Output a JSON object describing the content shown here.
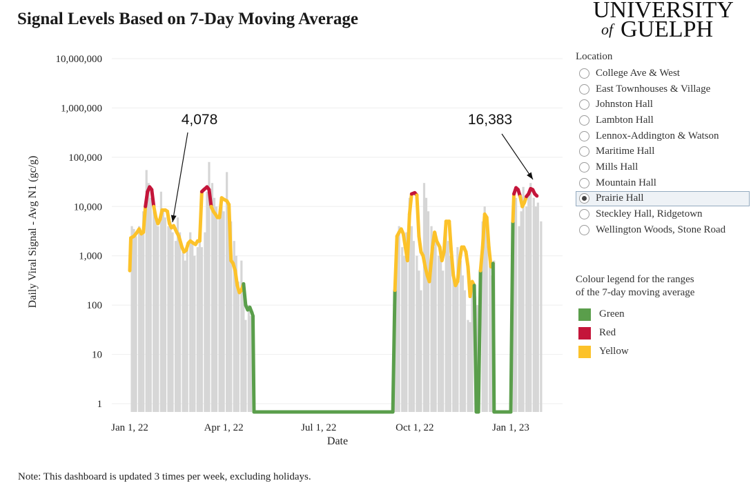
{
  "title": "Signal Levels Based on 7-Day Moving Average",
  "logo": {
    "line1": "UNIVERSITY",
    "of": "of",
    "line2": "GUELPH"
  },
  "location_panel": {
    "heading": "Location",
    "items": [
      {
        "label": "College Ave & West",
        "selected": false
      },
      {
        "label": "East Townhouses & Village",
        "selected": false
      },
      {
        "label": "Johnston Hall",
        "selected": false
      },
      {
        "label": "Lambton Hall",
        "selected": false
      },
      {
        "label": "Lennox-Addington & Watson",
        "selected": false
      },
      {
        "label": "Maritime Hall",
        "selected": false
      },
      {
        "label": "Mills Hall",
        "selected": false
      },
      {
        "label": "Mountain Hall",
        "selected": false
      },
      {
        "label": "Prairie Hall",
        "selected": true
      },
      {
        "label": "Steckley Hall, Ridgetown",
        "selected": false
      },
      {
        "label": "Wellington Woods, Stone Road",
        "selected": false
      }
    ]
  },
  "legend": {
    "title_line1": "Colour legend for the ranges",
    "title_line2": "of the 7-day moving average",
    "items": [
      {
        "label": "Green",
        "color": "#5a9e4b"
      },
      {
        "label": "Red",
        "color": "#c4153a"
      },
      {
        "label": "Yellow",
        "color": "#fcc22a"
      }
    ]
  },
  "note": "Note: This dashboard is updated 3 times per week, excluding holidays.",
  "chart_data": {
    "type": "bar",
    "title": "Signal Levels Based on 7-Day Moving Average",
    "xlabel": "Date",
    "ylabel": "Daily Viral Signal - Avg N1 (gc/g)",
    "y_scale": "log",
    "ylim": [
      1,
      10000000
    ],
    "xlim": [
      "2021-12-31",
      "2023-02-20"
    ],
    "y_ticks": [
      {
        "value": 10000000,
        "label": "10,000,000"
      },
      {
        "value": 1000000,
        "label": "1,000,000"
      },
      {
        "value": 100000,
        "label": "100,000"
      },
      {
        "value": 10000,
        "label": "10,000"
      },
      {
        "value": 1000,
        "label": "1,000"
      },
      {
        "value": 100,
        "label": "100"
      },
      {
        "value": 10,
        "label": "10"
      },
      {
        "value": 1,
        "label": "1"
      }
    ],
    "x_ticks": [
      {
        "date": "2022-01-01",
        "label": "Jan 1, 22"
      },
      {
        "date": "2022-04-01",
        "label": "Apr 1, 22"
      },
      {
        "date": "2022-07-01",
        "label": "Jul 1, 22"
      },
      {
        "date": "2022-10-01",
        "label": "Oct 1, 22"
      },
      {
        "date": "2023-01-01",
        "label": "Jan 1, 23"
      }
    ],
    "grid": true,
    "legend_position": "right",
    "bar_color": "#d6d6d6",
    "bars": {
      "name": "Daily Viral Signal",
      "points": [
        [
          "2022-01-03",
          4000
        ],
        [
          "2022-01-05",
          3500
        ],
        [
          "2022-01-07",
          2500
        ],
        [
          "2022-01-10",
          4000
        ],
        [
          "2022-01-12",
          3000
        ],
        [
          "2022-01-14",
          8000
        ],
        [
          "2022-01-17",
          55000
        ],
        [
          "2022-01-19",
          30000
        ],
        [
          "2022-01-21",
          15000
        ],
        [
          "2022-01-24",
          8000
        ],
        [
          "2022-01-26",
          6000
        ],
        [
          "2022-01-28",
          4000
        ],
        [
          "2022-01-31",
          20000
        ],
        [
          "2022-02-02",
          9000
        ],
        [
          "2022-02-04",
          6000
        ],
        [
          "2022-02-07",
          4000
        ],
        [
          "2022-02-09",
          5000
        ],
        [
          "2022-02-11",
          3000
        ],
        [
          "2022-02-14",
          2000
        ],
        [
          "2022-02-16",
          6000
        ],
        [
          "2022-02-18",
          3000
        ],
        [
          "2022-02-21",
          1200
        ],
        [
          "2022-02-23",
          800
        ],
        [
          "2022-02-25",
          1500
        ],
        [
          "2022-02-28",
          3000
        ],
        [
          "2022-03-02",
          1800
        ],
        [
          "2022-03-04",
          1000
        ],
        [
          "2022-03-07",
          1500
        ],
        [
          "2022-03-09",
          2500
        ],
        [
          "2022-03-11",
          1500
        ],
        [
          "2022-03-14",
          3000
        ],
        [
          "2022-03-16",
          20000
        ],
        [
          "2022-03-18",
          80000
        ],
        [
          "2022-03-21",
          30000
        ],
        [
          "2022-03-23",
          15000
        ],
        [
          "2022-03-25",
          10000
        ],
        [
          "2022-03-28",
          8000
        ],
        [
          "2022-03-30",
          15000
        ],
        [
          "2022-04-01",
          8000
        ],
        [
          "2022-04-04",
          50000
        ],
        [
          "2022-04-06",
          8000
        ],
        [
          "2022-04-08",
          5000
        ],
        [
          "2022-04-11",
          2000
        ],
        [
          "2022-04-13",
          1000
        ],
        [
          "2022-04-15",
          300
        ],
        [
          "2022-04-18",
          800
        ],
        [
          "2022-04-20",
          200
        ],
        [
          "2022-04-22",
          50
        ],
        [
          "2022-04-25",
          100
        ],
        [
          "2022-04-27",
          60
        ],
        [
          "2022-09-12",
          200
        ],
        [
          "2022-09-14",
          2000
        ],
        [
          "2022-09-16",
          4000
        ],
        [
          "2022-09-19",
          1500
        ],
        [
          "2022-09-21",
          1000
        ],
        [
          "2022-09-23",
          3000
        ],
        [
          "2022-09-26",
          15000
        ],
        [
          "2022-09-28",
          4000
        ],
        [
          "2022-09-30",
          2000
        ],
        [
          "2022-10-03",
          1000
        ],
        [
          "2022-10-05",
          500
        ],
        [
          "2022-10-07",
          200
        ],
        [
          "2022-10-10",
          30000
        ],
        [
          "2022-10-12",
          15000
        ],
        [
          "2022-10-14",
          8000
        ],
        [
          "2022-10-17",
          4000
        ],
        [
          "2022-10-19",
          1500
        ],
        [
          "2022-10-21",
          3000
        ],
        [
          "2022-10-24",
          1000
        ],
        [
          "2022-10-26",
          800
        ],
        [
          "2022-10-28",
          500
        ],
        [
          "2022-10-31",
          5000
        ],
        [
          "2022-11-02",
          2000
        ],
        [
          "2022-11-04",
          1000
        ],
        [
          "2022-11-07",
          400
        ],
        [
          "2022-11-09",
          300
        ],
        [
          "2022-11-11",
          1500
        ],
        [
          "2022-11-14",
          800
        ],
        [
          "2022-11-16",
          400
        ],
        [
          "2022-11-18",
          200
        ],
        [
          "2022-11-21",
          50
        ],
        [
          "2022-11-23",
          45
        ],
        [
          "2022-11-25",
          200
        ],
        [
          "2022-11-28",
          150
        ],
        [
          "2022-11-30",
          100
        ],
        [
          "2022-12-05",
          5000
        ],
        [
          "2022-12-07",
          10000
        ],
        [
          "2022-12-09",
          6000
        ],
        [
          "2022-12-12",
          1000
        ],
        [
          "2022-12-14",
          400
        ],
        [
          "2022-12-16",
          800
        ],
        [
          "2023-01-04",
          20000
        ],
        [
          "2023-01-06",
          15000
        ],
        [
          "2023-01-09",
          4000
        ],
        [
          "2023-01-11",
          8000
        ],
        [
          "2023-01-13",
          25000
        ],
        [
          "2023-01-16",
          10000
        ],
        [
          "2023-01-18",
          20000
        ],
        [
          "2023-01-20",
          30000
        ],
        [
          "2023-01-23",
          15000
        ],
        [
          "2023-01-25",
          10000
        ],
        [
          "2023-01-27",
          12000
        ],
        [
          "2023-01-30",
          5000
        ]
      ]
    },
    "series": [
      {
        "name": "7-day moving average",
        "points": [
          [
            "2022-01-01",
            500
          ],
          [
            "2022-01-02",
            2300
          ],
          [
            "2022-01-05",
            2500
          ],
          [
            "2022-01-08",
            3000
          ],
          [
            "2022-01-10",
            3500
          ],
          [
            "2022-01-12",
            2800
          ],
          [
            "2022-01-14",
            3000
          ],
          [
            "2022-01-16",
            10000
          ],
          [
            "2022-01-18",
            20000
          ],
          [
            "2022-01-20",
            25000
          ],
          [
            "2022-01-22",
            22000
          ],
          [
            "2022-01-24",
            10000
          ],
          [
            "2022-01-26",
            6000
          ],
          [
            "2022-01-28",
            4500
          ],
          [
            "2022-01-30",
            5500
          ],
          [
            "2022-02-01",
            8500
          ],
          [
            "2022-02-04",
            8500
          ],
          [
            "2022-02-06",
            8000
          ],
          [
            "2022-02-08",
            4500
          ],
          [
            "2022-02-10",
            3700
          ],
          [
            "2022-02-12",
            4078
          ],
          [
            "2022-02-15",
            3000
          ],
          [
            "2022-02-17",
            2500
          ],
          [
            "2022-02-20",
            1500
          ],
          [
            "2022-02-22",
            1200
          ],
          [
            "2022-02-24",
            1300
          ],
          [
            "2022-02-26",
            1800
          ],
          [
            "2022-02-28",
            2000
          ],
          [
            "2022-03-03",
            1800
          ],
          [
            "2022-03-05",
            1700
          ],
          [
            "2022-03-07",
            2000
          ],
          [
            "2022-03-09",
            2000
          ],
          [
            "2022-03-11",
            20000
          ],
          [
            "2022-03-13",
            22000
          ],
          [
            "2022-03-16",
            25000
          ],
          [
            "2022-03-18",
            22000
          ],
          [
            "2022-03-20",
            10000
          ],
          [
            "2022-03-22",
            8000
          ],
          [
            "2022-03-24",
            7000
          ],
          [
            "2022-03-26",
            6000
          ],
          [
            "2022-03-28",
            6000
          ],
          [
            "2022-03-30",
            15000
          ],
          [
            "2022-04-01",
            14000
          ],
          [
            "2022-04-04",
            13000
          ],
          [
            "2022-04-06",
            11000
          ],
          [
            "2022-04-08",
            800
          ],
          [
            "2022-04-10",
            700
          ],
          [
            "2022-04-12",
            500
          ],
          [
            "2022-04-14",
            250
          ],
          [
            "2022-04-16",
            180
          ],
          [
            "2022-04-18",
            200
          ],
          [
            "2022-04-20",
            270
          ],
          [
            "2022-04-22",
            100
          ],
          [
            "2022-04-24",
            80
          ],
          [
            "2022-04-26",
            90
          ],
          [
            "2022-04-28",
            70
          ],
          [
            "2022-04-29",
            60
          ],
          [
            "2022-04-30",
            0.7
          ],
          [
            "2022-09-10",
            0.7
          ],
          [
            "2022-09-12",
            200
          ],
          [
            "2022-09-14",
            2500
          ],
          [
            "2022-09-16",
            3000
          ],
          [
            "2022-09-18",
            3500
          ],
          [
            "2022-09-20",
            2800
          ],
          [
            "2022-09-22",
            1500
          ],
          [
            "2022-09-24",
            800
          ],
          [
            "2022-09-26",
            7000
          ],
          [
            "2022-09-28",
            18000
          ],
          [
            "2022-10-01",
            19000
          ],
          [
            "2022-10-03",
            17000
          ],
          [
            "2022-10-05",
            2500
          ],
          [
            "2022-10-07",
            1200
          ],
          [
            "2022-10-09",
            1000
          ],
          [
            "2022-10-11",
            600
          ],
          [
            "2022-10-13",
            400
          ],
          [
            "2022-10-15",
            300
          ],
          [
            "2022-10-18",
            1500
          ],
          [
            "2022-10-20",
            3000
          ],
          [
            "2022-10-22",
            2000
          ],
          [
            "2022-10-25",
            1500
          ],
          [
            "2022-10-27",
            800
          ],
          [
            "2022-10-29",
            1200
          ],
          [
            "2022-10-31",
            5000
          ],
          [
            "2022-11-03",
            5000
          ],
          [
            "2022-11-05",
            1200
          ],
          [
            "2022-11-07",
            400
          ],
          [
            "2022-11-09",
            250
          ],
          [
            "2022-11-11",
            300
          ],
          [
            "2022-11-13",
            800
          ],
          [
            "2022-11-15",
            1500
          ],
          [
            "2022-11-17",
            1500
          ],
          [
            "2022-11-19",
            1200
          ],
          [
            "2022-11-21",
            600
          ],
          [
            "2022-11-23",
            150
          ],
          [
            "2022-11-25",
            300
          ],
          [
            "2022-11-27",
            250
          ],
          [
            "2022-11-29",
            0.7
          ],
          [
            "2022-12-01",
            0.7
          ],
          [
            "2022-12-03",
            500
          ],
          [
            "2022-12-05",
            1500
          ],
          [
            "2022-12-07",
            7000
          ],
          [
            "2022-12-09",
            6000
          ],
          [
            "2022-12-11",
            1500
          ],
          [
            "2022-12-13",
            600
          ],
          [
            "2022-12-15",
            700
          ],
          [
            "2022-12-16",
            0.7
          ],
          [
            "2023-01-01",
            0.7
          ],
          [
            "2023-01-03",
            5000
          ],
          [
            "2023-01-04",
            18000
          ],
          [
            "2023-01-06",
            24000
          ],
          [
            "2023-01-08",
            22000
          ],
          [
            "2023-01-10",
            16000
          ],
          [
            "2023-01-12",
            10000
          ],
          [
            "2023-01-14",
            12000
          ],
          [
            "2023-01-16",
            16000
          ],
          [
            "2023-01-18",
            18000
          ],
          [
            "2023-01-20",
            23000
          ],
          [
            "2023-01-22",
            22000
          ],
          [
            "2023-01-24",
            18000
          ],
          [
            "2023-01-26",
            16383
          ]
        ]
      }
    ],
    "annotations": [
      {
        "label": "4,078",
        "date": "2022-02-12",
        "value": 4078
      },
      {
        "label": "16,383",
        "date": "2023-01-26",
        "value": 16383
      }
    ]
  }
}
